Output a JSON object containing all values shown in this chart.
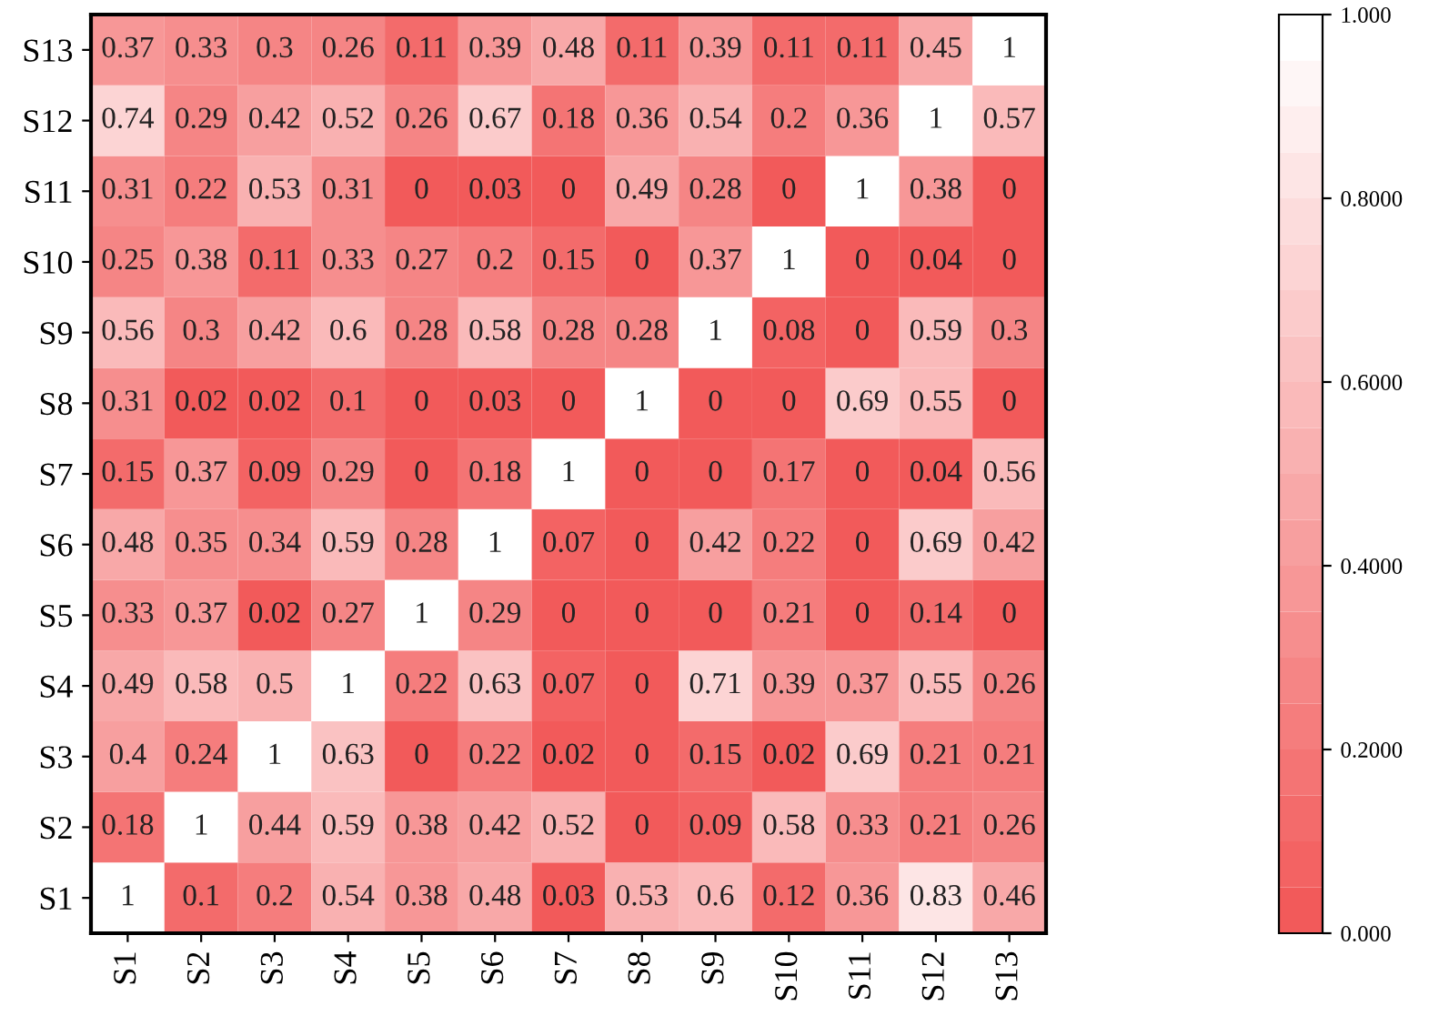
{
  "chart_data": {
    "type": "heatmap",
    "categories": [
      "S1",
      "S2",
      "S3",
      "S4",
      "S5",
      "S6",
      "S7",
      "S8",
      "S9",
      "S10",
      "S11",
      "S12",
      "S13"
    ],
    "y_categories": [
      "S13",
      "S12",
      "S11",
      "S10",
      "S9",
      "S8",
      "S7",
      "S6",
      "S5",
      "S4",
      "S3",
      "S2",
      "S1"
    ],
    "cells": [
      [
        0.37,
        0.33,
        0.3,
        0.26,
        0.11,
        0.39,
        0.48,
        0.11,
        0.39,
        0.11,
        0.11,
        0.45,
        1
      ],
      [
        0.74,
        0.29,
        0.42,
        0.52,
        0.26,
        0.67,
        0.18,
        0.36,
        0.54,
        0.2,
        0.36,
        1,
        0.57
      ],
      [
        0.31,
        0.22,
        0.53,
        0.31,
        0,
        0.03,
        0,
        0.49,
        0.28,
        0,
        1,
        0.38,
        0
      ],
      [
        0.25,
        0.38,
        0.11,
        0.33,
        0.27,
        0.2,
        0.15,
        0,
        0.37,
        1,
        0,
        0.04,
        0
      ],
      [
        0.56,
        0.3,
        0.42,
        0.6,
        0.28,
        0.58,
        0.28,
        0.28,
        1,
        0.08,
        0,
        0.59,
        0.3
      ],
      [
        0.31,
        0.02,
        0.02,
        0.1,
        0,
        0.03,
        0,
        1,
        0,
        0,
        0.69,
        0.55,
        0
      ],
      [
        0.15,
        0.37,
        0.09,
        0.29,
        0,
        0.18,
        1,
        0,
        0,
        0.17,
        0,
        0.04,
        0.56
      ],
      [
        0.48,
        0.35,
        0.34,
        0.59,
        0.28,
        1,
        0.07,
        0,
        0.42,
        0.22,
        0,
        0.69,
        0.42
      ],
      [
        0.33,
        0.37,
        0.02,
        0.27,
        1,
        0.29,
        0,
        0,
        0,
        0.21,
        0,
        0.14,
        0
      ],
      [
        0.49,
        0.58,
        0.5,
        1,
        0.22,
        0.63,
        0.07,
        0,
        0.71,
        0.39,
        0.37,
        0.55,
        0.26
      ],
      [
        0.4,
        0.24,
        1,
        0.63,
        0,
        0.22,
        0.02,
        0,
        0.15,
        0.02,
        0.69,
        0.21,
        0.21
      ],
      [
        0.18,
        1,
        0.44,
        0.59,
        0.38,
        0.42,
        0.52,
        0,
        0.09,
        0.58,
        0.33,
        0.21,
        0.26
      ],
      [
        1,
        0.1,
        0.2,
        0.54,
        0.38,
        0.48,
        0.03,
        0.53,
        0.6,
        0.12,
        0.36,
        0.83,
        0.46
      ]
    ],
    "clim": [
      0,
      1
    ],
    "cticks": [
      {
        "value": 0,
        "label": "0.000"
      },
      {
        "value": 0.2,
        "label": "0.2000"
      },
      {
        "value": 0.4,
        "label": "0.4000"
      },
      {
        "value": 0.6,
        "label": "0.6000"
      },
      {
        "value": 0.8,
        "label": "0.8000"
      },
      {
        "value": 1,
        "label": "1.000"
      }
    ],
    "data_labels": true
  }
}
